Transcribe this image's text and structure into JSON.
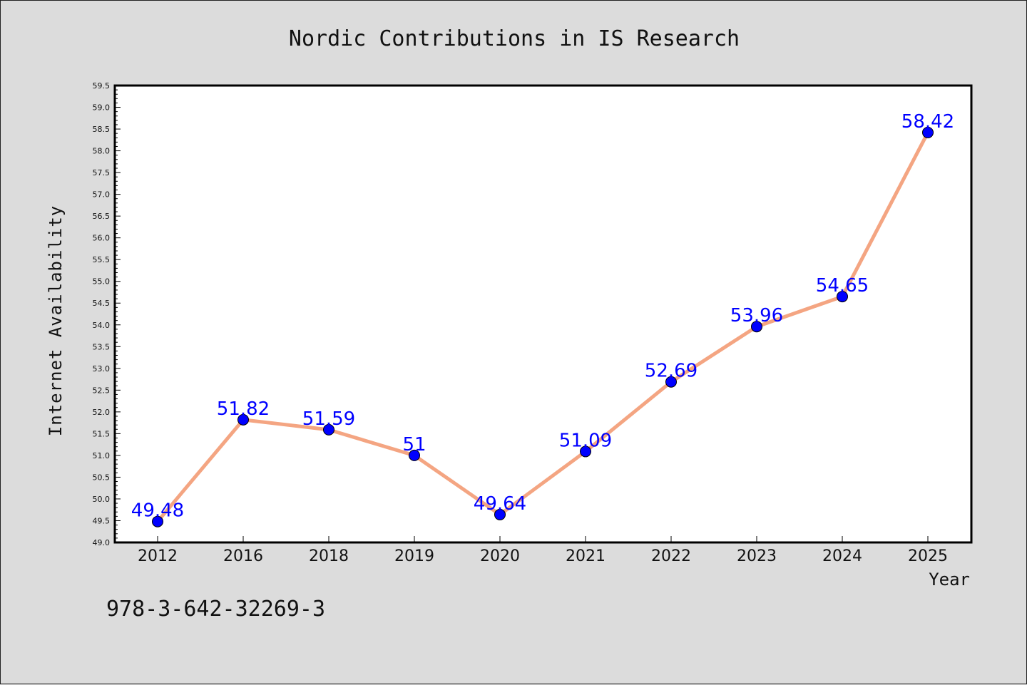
{
  "chart_data": {
    "type": "line",
    "title": "Nordic Contributions in IS Research",
    "xlabel": "Year",
    "ylabel": "Internet Availability",
    "categories": [
      "2012",
      "2016",
      "2018",
      "2019",
      "2020",
      "2021",
      "2022",
      "2023",
      "2024",
      "2025"
    ],
    "values": [
      49.48,
      51.82,
      51.59,
      51,
      49.64,
      51.09,
      52.69,
      53.96,
      54.65,
      58.42
    ],
    "data_labels": [
      "49.48",
      "51.82",
      "51.59",
      "51",
      "49.64",
      "51.09",
      "52.69",
      "53.96",
      "54.65",
      "58.42"
    ],
    "ylim": [
      49.0,
      59.5
    ],
    "yticks": [
      "49.0",
      "49.5",
      "50.0",
      "50.5",
      "51.0",
      "51.5",
      "52.0",
      "52.5",
      "53.0",
      "53.5",
      "54.0",
      "54.5",
      "55.0",
      "55.5",
      "56.0",
      "56.5",
      "57.0",
      "57.5",
      "58.0",
      "58.5",
      "59.0",
      "59.5"
    ],
    "grid": false,
    "legend": "none",
    "colors": {
      "line": "#f4a582",
      "marker": "#0000ff",
      "label": "#0000ff",
      "plot_background": "#ffffff",
      "figure_background": "#dcdcdc"
    }
  },
  "footnote": "978-3-642-32269-3"
}
